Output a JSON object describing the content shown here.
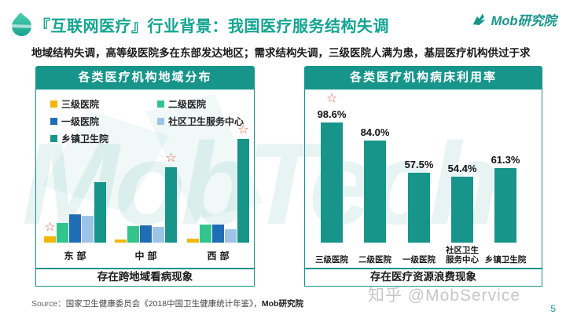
{
  "header": {
    "title": "『互联网医疗』行业背景：我国医疗服务结构失调",
    "subtitle": "地域结构失调，高等级医院多在东部发达地区；需求结构失调，三级医院人满为患，基层医疗机构供过于求",
    "logo_text": "Mob研究院"
  },
  "watermarks": {
    "center": "MobTech",
    "bottom_right": "知乎 @MobService"
  },
  "footer": {
    "source_label": "Source：",
    "source_text": "国家卫生健康委员会《2018中国卫生健康统计年鉴》，",
    "source_brand": "Mob研究院",
    "page_number": "5"
  },
  "colors": {
    "primary_teal": "#17958B",
    "title_teal": "#13A592",
    "star_orange": "#E8603C",
    "tier3_yellow": "#F2B705",
    "tier2_green": "#33C48D",
    "tier1_blue": "#1F6DB5",
    "community_lightblue": "#9DC3E6",
    "township_teal": "#17958B"
  },
  "chart_data": [
    {
      "type": "bar",
      "title": "各类医疗机构地域分布",
      "footer_note": "存在跨地域看病现象",
      "categories": [
        "东部",
        "中部",
        "西部"
      ],
      "values_unit": "relative height (no axis values shown in image)",
      "grid": false,
      "legend_position": "top",
      "series": [
        {
          "name": "三级医院",
          "color": "#F2B705",
          "values": [
            8,
            4,
            5
          ]
        },
        {
          "name": "二级医院",
          "color": "#33C48D",
          "values": [
            25,
            21,
            23
          ]
        },
        {
          "name": "一级医院",
          "color": "#1F6DB5",
          "values": [
            36,
            22,
            23
          ]
        },
        {
          "name": "社区卫生服务中心",
          "color": "#9DC3E6",
          "values": [
            34,
            20,
            17
          ]
        },
        {
          "name": "乡镇卫生院",
          "color": "#17958B",
          "values": [
            77,
            96,
            132
          ]
        }
      ],
      "star_markers": [
        {
          "category": "东部",
          "series": "三级医院"
        },
        {
          "category": "中部",
          "series": "乡镇卫生院"
        },
        {
          "category": "西部",
          "series": "乡镇卫生院"
        }
      ]
    },
    {
      "type": "bar",
      "title": "各类医疗机构病床利用率",
      "footer_note": "存在医疗资源浪费现象",
      "categories": [
        "三级医院",
        "二级医院",
        "一级医院",
        "社区卫生服务中心",
        "乡镇卫生院"
      ],
      "values": [
        98.6,
        84.0,
        57.5,
        54.4,
        61.3
      ],
      "data_labels": [
        "98.6%",
        "84.0%",
        "57.5%",
        "54.4%",
        "61.3%"
      ],
      "bar_color": "#17958B",
      "ylim": [
        0,
        110
      ],
      "grid": false,
      "star_markers": [
        {
          "category": "三级医院"
        }
      ]
    }
  ]
}
